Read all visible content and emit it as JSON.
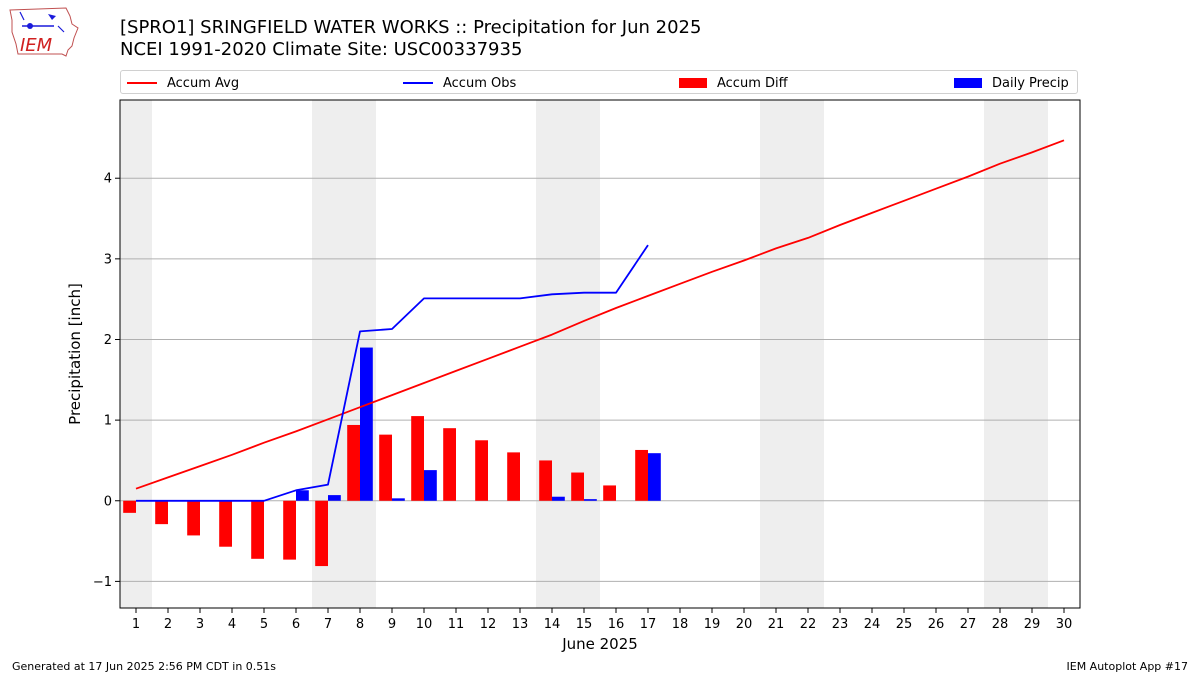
{
  "title_line1": "[SPRO1] SRINGFIELD WATER WORKS :: Precipitation for Jun 2025",
  "title_line2": "NCEI 1991-2020 Climate Site: USC00337935",
  "logo_text": "IEM",
  "footer_left": "Generated at 17 Jun 2025 2:56 PM CDT in 0.51s",
  "footer_right": "IEM Autoplot App #17",
  "colors": {
    "accum_avg": "#ff0000",
    "accum_obs": "#0000ff",
    "accum_diff": "#ff0000",
    "daily_precip": "#0000ff",
    "weekend_shade": "#eeeeee",
    "grid": "#b0b0b0"
  },
  "chart_data": {
    "type": "bar",
    "xlabel": "June 2025",
    "ylabel": "Precipitation [inch]",
    "xlim": [
      0.5,
      30.5
    ],
    "ylim": [
      -1.33,
      4.97
    ],
    "y_ticks": [
      -1,
      0,
      1,
      2,
      3,
      4
    ],
    "y_tick_labels": [
      "−1",
      "0",
      "1",
      "2",
      "3",
      "4"
    ],
    "x_ticks": [
      1,
      2,
      3,
      4,
      5,
      6,
      7,
      8,
      9,
      10,
      11,
      12,
      13,
      14,
      15,
      16,
      17,
      18,
      19,
      20,
      21,
      22,
      23,
      24,
      25,
      26,
      27,
      28,
      29,
      30
    ],
    "grid": "y",
    "legend_position": "top",
    "weekend_days": [
      1,
      7,
      8,
      14,
      15,
      21,
      22,
      28,
      29
    ],
    "series": [
      {
        "name": "Accum Avg",
        "type": "line",
        "x": [
          1,
          2,
          3,
          4,
          5,
          6,
          7,
          8,
          9,
          10,
          11,
          12,
          13,
          14,
          15,
          16,
          17,
          18,
          19,
          20,
          21,
          22,
          23,
          24,
          25,
          26,
          27,
          28,
          29,
          30
        ],
        "values": [
          0.15,
          0.29,
          0.43,
          0.57,
          0.72,
          0.86,
          1.01,
          1.16,
          1.31,
          1.46,
          1.61,
          1.76,
          1.91,
          2.06,
          2.23,
          2.39,
          2.54,
          2.69,
          2.84,
          2.98,
          3.13,
          3.26,
          3.42,
          3.57,
          3.72,
          3.87,
          4.02,
          4.18,
          4.32,
          4.47
        ]
      },
      {
        "name": "Accum Obs",
        "type": "line",
        "x": [
          1,
          2,
          3,
          4,
          5,
          6,
          7,
          8,
          9,
          10,
          11,
          12,
          13,
          14,
          15,
          16,
          17
        ],
        "values": [
          0,
          0,
          0,
          0,
          0,
          0.13,
          0.2,
          2.1,
          2.13,
          2.51,
          2.51,
          2.51,
          2.51,
          2.56,
          2.58,
          2.58,
          3.17
        ]
      },
      {
        "name": "Accum Diff",
        "type": "bar",
        "x": [
          1,
          2,
          3,
          4,
          5,
          6,
          7,
          8,
          9,
          10,
          11,
          12,
          13,
          14,
          15,
          16,
          17
        ],
        "values": [
          -0.15,
          -0.29,
          -0.43,
          -0.57,
          -0.72,
          -0.73,
          -0.81,
          0.94,
          0.82,
          1.05,
          0.9,
          0.75,
          0.6,
          0.5,
          0.35,
          0.19,
          0.63
        ]
      },
      {
        "name": "Daily Precip",
        "type": "bar",
        "x": [
          1,
          2,
          3,
          4,
          5,
          6,
          7,
          8,
          9,
          10,
          11,
          12,
          13,
          14,
          15,
          16,
          17
        ],
        "values": [
          0,
          0,
          0,
          0,
          0,
          0.13,
          0.07,
          1.9,
          0.03,
          0.38,
          0,
          0,
          0,
          0.05,
          0.02,
          0,
          0.59
        ]
      }
    ]
  }
}
